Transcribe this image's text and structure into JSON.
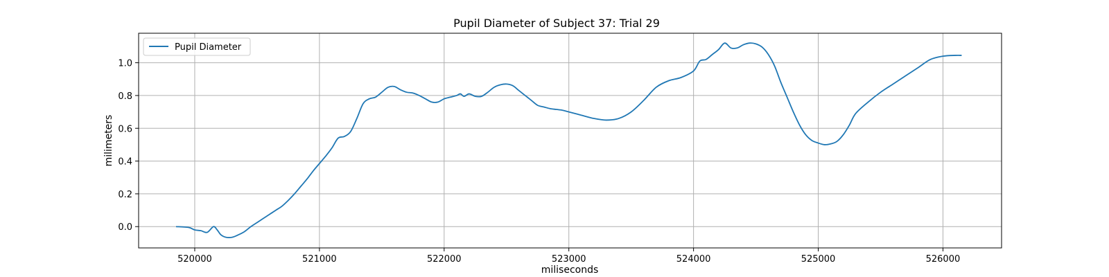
{
  "chart_data": {
    "type": "line",
    "title": "Pupil Diameter of Subject 37: Trial 29",
    "xlabel": "miliseconds",
    "ylabel": "milimeters",
    "xlim": [
      519550,
      526470
    ],
    "ylim": [
      -0.13,
      1.18
    ],
    "xticks": [
      520000,
      521000,
      522000,
      523000,
      524000,
      525000,
      526000
    ],
    "yticks": [
      0.0,
      0.2,
      0.4,
      0.6,
      0.8,
      1.0
    ],
    "ytick_labels": [
      "0.0",
      "0.2",
      "0.4",
      "0.6",
      "0.8",
      "1.0"
    ],
    "grid": true,
    "legend_position": "top-left",
    "series": [
      {
        "name": "Pupil Diameter",
        "color": "#1f77b4",
        "x": [
          519850,
          519950,
          520000,
          520050,
          520100,
          520150,
          520180,
          520210,
          520250,
          520300,
          520350,
          520400,
          520450,
          520500,
          520550,
          520600,
          520650,
          520700,
          520750,
          520800,
          520850,
          520900,
          520950,
          521000,
          521050,
          521100,
          521150,
          521200,
          521250,
          521300,
          521350,
          521400,
          521450,
          521500,
          521550,
          521600,
          521650,
          521700,
          521750,
          521800,
          521850,
          521900,
          521950,
          522000,
          522050,
          522100,
          522130,
          522160,
          522200,
          522250,
          522300,
          522350,
          522400,
          522450,
          522500,
          522550,
          522600,
          522650,
          522700,
          522750,
          522800,
          522850,
          522900,
          522950,
          523000,
          523100,
          523200,
          523300,
          523400,
          523500,
          523600,
          523700,
          523800,
          523900,
          524000,
          524050,
          524100,
          524150,
          524200,
          524250,
          524300,
          524350,
          524400,
          524450,
          524500,
          524550,
          524600,
          524650,
          524700,
          524750,
          524800,
          524850,
          524900,
          524950,
          525000,
          525050,
          525100,
          525150,
          525200,
          525250,
          525300,
          525400,
          525500,
          525600,
          525700,
          525800,
          525900,
          526000,
          526100,
          526150
        ],
        "y": [
          0.0,
          -0.005,
          -0.02,
          -0.025,
          -0.035,
          0.0,
          -0.02,
          -0.05,
          -0.065,
          -0.065,
          -0.05,
          -0.03,
          0.0,
          0.025,
          0.05,
          0.075,
          0.1,
          0.125,
          0.16,
          0.2,
          0.245,
          0.29,
          0.34,
          0.385,
          0.43,
          0.48,
          0.54,
          0.55,
          0.58,
          0.66,
          0.75,
          0.78,
          0.79,
          0.82,
          0.85,
          0.855,
          0.835,
          0.82,
          0.815,
          0.8,
          0.78,
          0.76,
          0.76,
          0.78,
          0.79,
          0.8,
          0.81,
          0.795,
          0.81,
          0.795,
          0.795,
          0.82,
          0.85,
          0.865,
          0.87,
          0.86,
          0.83,
          0.8,
          0.77,
          0.74,
          0.73,
          0.72,
          0.715,
          0.71,
          0.7,
          0.68,
          0.66,
          0.65,
          0.66,
          0.7,
          0.77,
          0.85,
          0.89,
          0.91,
          0.95,
          1.01,
          1.02,
          1.05,
          1.08,
          1.12,
          1.09,
          1.09,
          1.11,
          1.12,
          1.115,
          1.095,
          1.05,
          0.98,
          0.88,
          0.79,
          0.7,
          0.62,
          0.56,
          0.525,
          0.51,
          0.5,
          0.505,
          0.52,
          0.56,
          0.62,
          0.69,
          0.76,
          0.82,
          0.87,
          0.92,
          0.97,
          1.02,
          1.04,
          1.045,
          1.045
        ]
      }
    ]
  }
}
